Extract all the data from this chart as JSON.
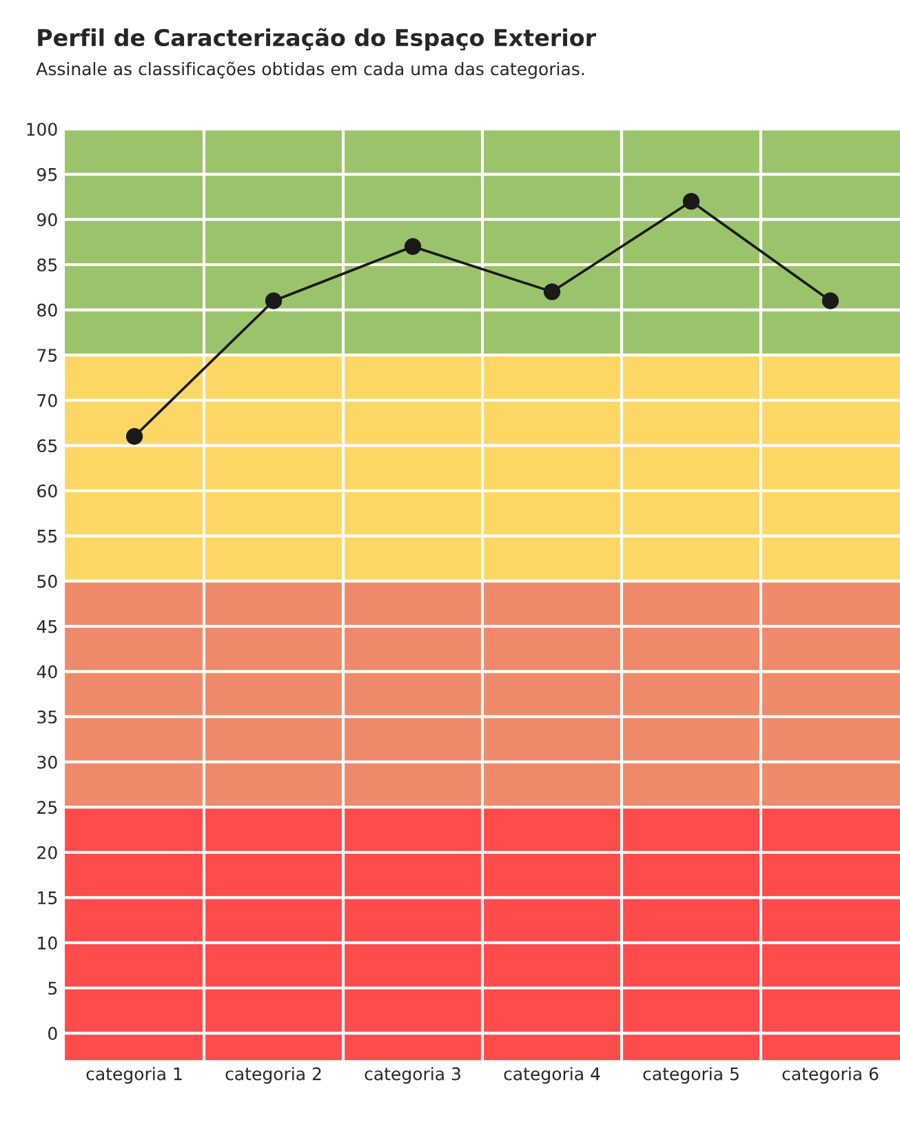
{
  "chart_data": {
    "type": "line",
    "title": "Perfil de Caracterização do Espaço Exterior",
    "subtitle": "Assinale as classificações obtidas em cada uma das categorias.",
    "categories": [
      "categoria 1",
      "categoria 2",
      "categoria 3",
      "categoria 4",
      "categoria 5",
      "categoria 6"
    ],
    "series": [
      {
        "color": "#1a1a1a",
        "values": [
          66,
          81,
          87,
          82,
          92,
          81
        ]
      }
    ],
    "marker": "circle",
    "line_style": "solid",
    "ylim": [
      -3,
      100
    ],
    "yticks": [
      0,
      5,
      10,
      15,
      20,
      25,
      30,
      35,
      40,
      45,
      50,
      55,
      60,
      65,
      70,
      75,
      80,
      85,
      90,
      95,
      100
    ],
    "grid": true,
    "bands": [
      {
        "axis": "y",
        "from": -3,
        "to": 25,
        "color": "#ff4b4b"
      },
      {
        "axis": "y",
        "from": 25,
        "to": 50,
        "color": "#ee8a6a"
      },
      {
        "axis": "y",
        "from": 50,
        "to": 75,
        "color": "#fdd766"
      },
      {
        "axis": "y",
        "from": 75,
        "to": 100,
        "color": "#9bc36c"
      }
    ]
  }
}
